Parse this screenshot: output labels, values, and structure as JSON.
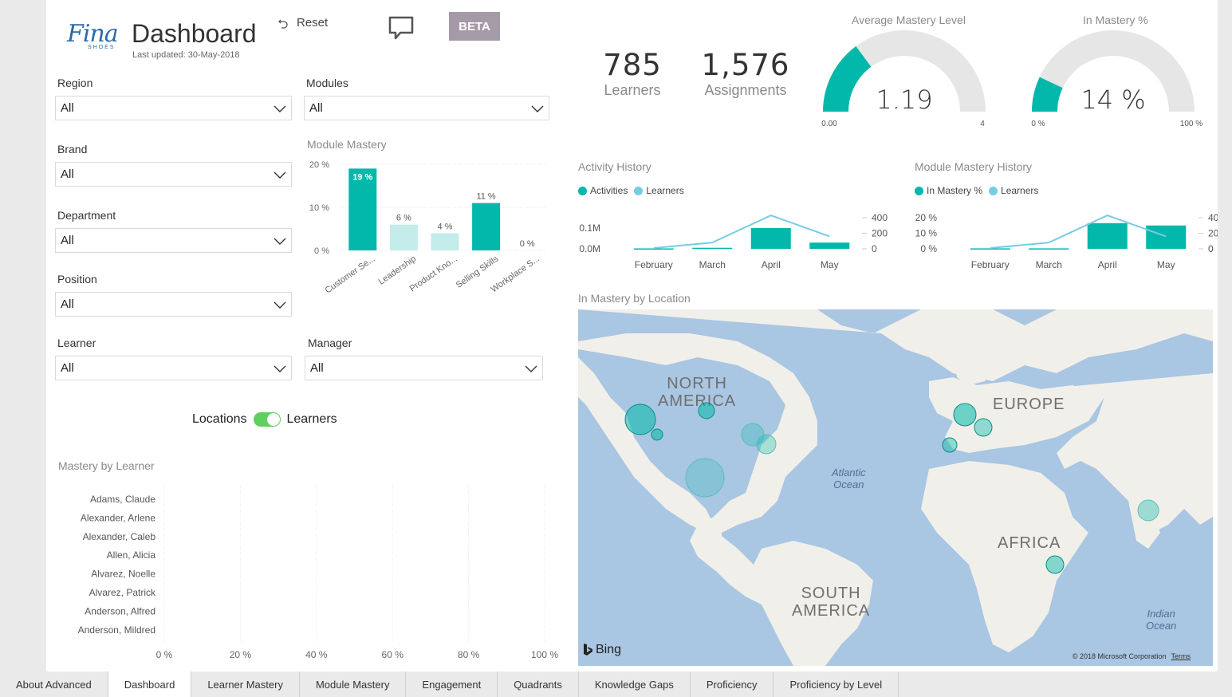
{
  "header": {
    "logo_text": "Fina",
    "logo_subtext": "SHOES",
    "title": "Dashboard",
    "last_updated": "Last updated: 30-May-2018",
    "reset_label": "Reset",
    "beta_label": "BETA"
  },
  "filters": {
    "region": {
      "label": "Region",
      "value": "All"
    },
    "modules": {
      "label": "Modules",
      "value": "All"
    },
    "brand": {
      "label": "Brand",
      "value": "All"
    },
    "department": {
      "label": "Department",
      "value": "All"
    },
    "position": {
      "label": "Position",
      "value": "All"
    },
    "learner": {
      "label": "Learner",
      "value": "All"
    },
    "manager": {
      "label": "Manager",
      "value": "All"
    }
  },
  "toggle": {
    "left_label": "Locations",
    "right_label": "Learners",
    "state": "Learners"
  },
  "kpis": {
    "learners": {
      "value": "785",
      "label": "Learners"
    },
    "assignments": {
      "value": "1,576",
      "label": "Assignments"
    }
  },
  "gauges": {
    "avg_mastery": {
      "title": "Average Mastery Level",
      "value_text": "1.19",
      "value": 1.19,
      "min": 0,
      "max": 4,
      "min_label": "0.00",
      "max_label": "4"
    },
    "in_mastery": {
      "title": "In Mastery %",
      "value_text": "14 %",
      "value": 14,
      "min": 0,
      "max": 100,
      "min_label": "0 %",
      "max_label": "100 %"
    }
  },
  "module_mastery": {
    "title": "Module Mastery",
    "y_ticks": [
      "20 %",
      "10 %",
      "0 %"
    ],
    "categories": [
      "Customer Se...",
      "Leadership",
      "Product Kno...",
      "Selling Skills",
      "Workplace S..."
    ],
    "values": [
      19,
      6,
      4,
      11,
      0
    ],
    "labels": [
      "19 %",
      "6 %",
      "4 %",
      "11 %",
      "0 %"
    ],
    "highlighted": [
      true,
      false,
      false,
      true,
      false
    ]
  },
  "activity_history": {
    "title": "Activity History",
    "legend": [
      "Activities",
      "Learners"
    ],
    "categories": [
      "February",
      "March",
      "April",
      "May"
    ],
    "left_ticks": [
      "0.1M",
      "0.0M"
    ],
    "right_ticks": [
      "400",
      "200",
      "0"
    ]
  },
  "mastery_history": {
    "title": "Module Mastery History",
    "legend": [
      "In Mastery %",
      "Learners"
    ],
    "categories": [
      "February",
      "March",
      "April",
      "May"
    ],
    "left_ticks": [
      "20 %",
      "10 %",
      "0 %"
    ],
    "right_ticks": [
      "400",
      "200",
      "0"
    ]
  },
  "map": {
    "title": "In Mastery by Location",
    "labels": {
      "north_america": [
        "NORTH",
        "AMERICA"
      ],
      "europe": "EUROPE",
      "africa": "AFRICA",
      "south_america": [
        "SOUTH",
        "AMERICA"
      ]
    },
    "oceans": {
      "atlantic": [
        "Atlantic",
        "Ocean"
      ],
      "indian": [
        "Indian",
        "Ocean"
      ]
    },
    "bing": "Bing",
    "copyright": "© 2018 Microsoft Corporation",
    "terms": "Terms"
  },
  "mastery_by_learner": {
    "title": "Mastery by Learner",
    "learners": [
      "Adams, Claude",
      "Alexander, Arlene",
      "Alexander, Caleb",
      "Allen, Alicia",
      "Alvarez, Noelle",
      "Alvarez, Patrick",
      "Anderson, Alfred",
      "Anderson, Mildred"
    ],
    "x_ticks": [
      "0 %",
      "20 %",
      "40 %",
      "60 %",
      "80 %",
      "100 %"
    ]
  },
  "tabs": [
    "About Advanced",
    "Dashboard",
    "Learner Mastery",
    "Module Mastery",
    "Engagement",
    "Quadrants",
    "Knowledge Gaps",
    "Proficiency",
    "Proficiency by Level"
  ],
  "active_tab": "Dashboard",
  "colors": {
    "teal": "#01b8aa",
    "light_teal": "#c3ecea",
    "line_blue": "#74cde4",
    "gauge_bg": "#e6e6e6",
    "beta": "#a59aa7"
  },
  "chart_data": [
    {
      "type": "bar",
      "title": "Module Mastery",
      "categories": [
        "Customer Se...",
        "Leadership",
        "Product Kno...",
        "Selling Skills",
        "Workplace S..."
      ],
      "values": [
        19,
        6,
        4,
        11,
        0
      ],
      "ylim": [
        0,
        20
      ]
    },
    {
      "type": "bar",
      "title": "Activity History",
      "categories": [
        "February",
        "March",
        "April",
        "May"
      ],
      "series": [
        {
          "name": "Activities",
          "type": "bar",
          "axis": "left",
          "values": [
            2000,
            5000,
            100000,
            30000
          ]
        },
        {
          "name": "Learners",
          "type": "line",
          "axis": "right",
          "values": [
            10,
            80,
            430,
            160
          ]
        }
      ]
    },
    {
      "type": "bar",
      "title": "Module Mastery History",
      "categories": [
        "February",
        "March",
        "April",
        "May"
      ],
      "series": [
        {
          "name": "In Mastery %",
          "type": "bar",
          "axis": "left",
          "values": [
            0.3,
            0.3,
            16.5,
            15
          ]
        },
        {
          "name": "Learners",
          "type": "line",
          "axis": "right",
          "values": [
            10,
            80,
            430,
            160
          ]
        }
      ]
    }
  ]
}
